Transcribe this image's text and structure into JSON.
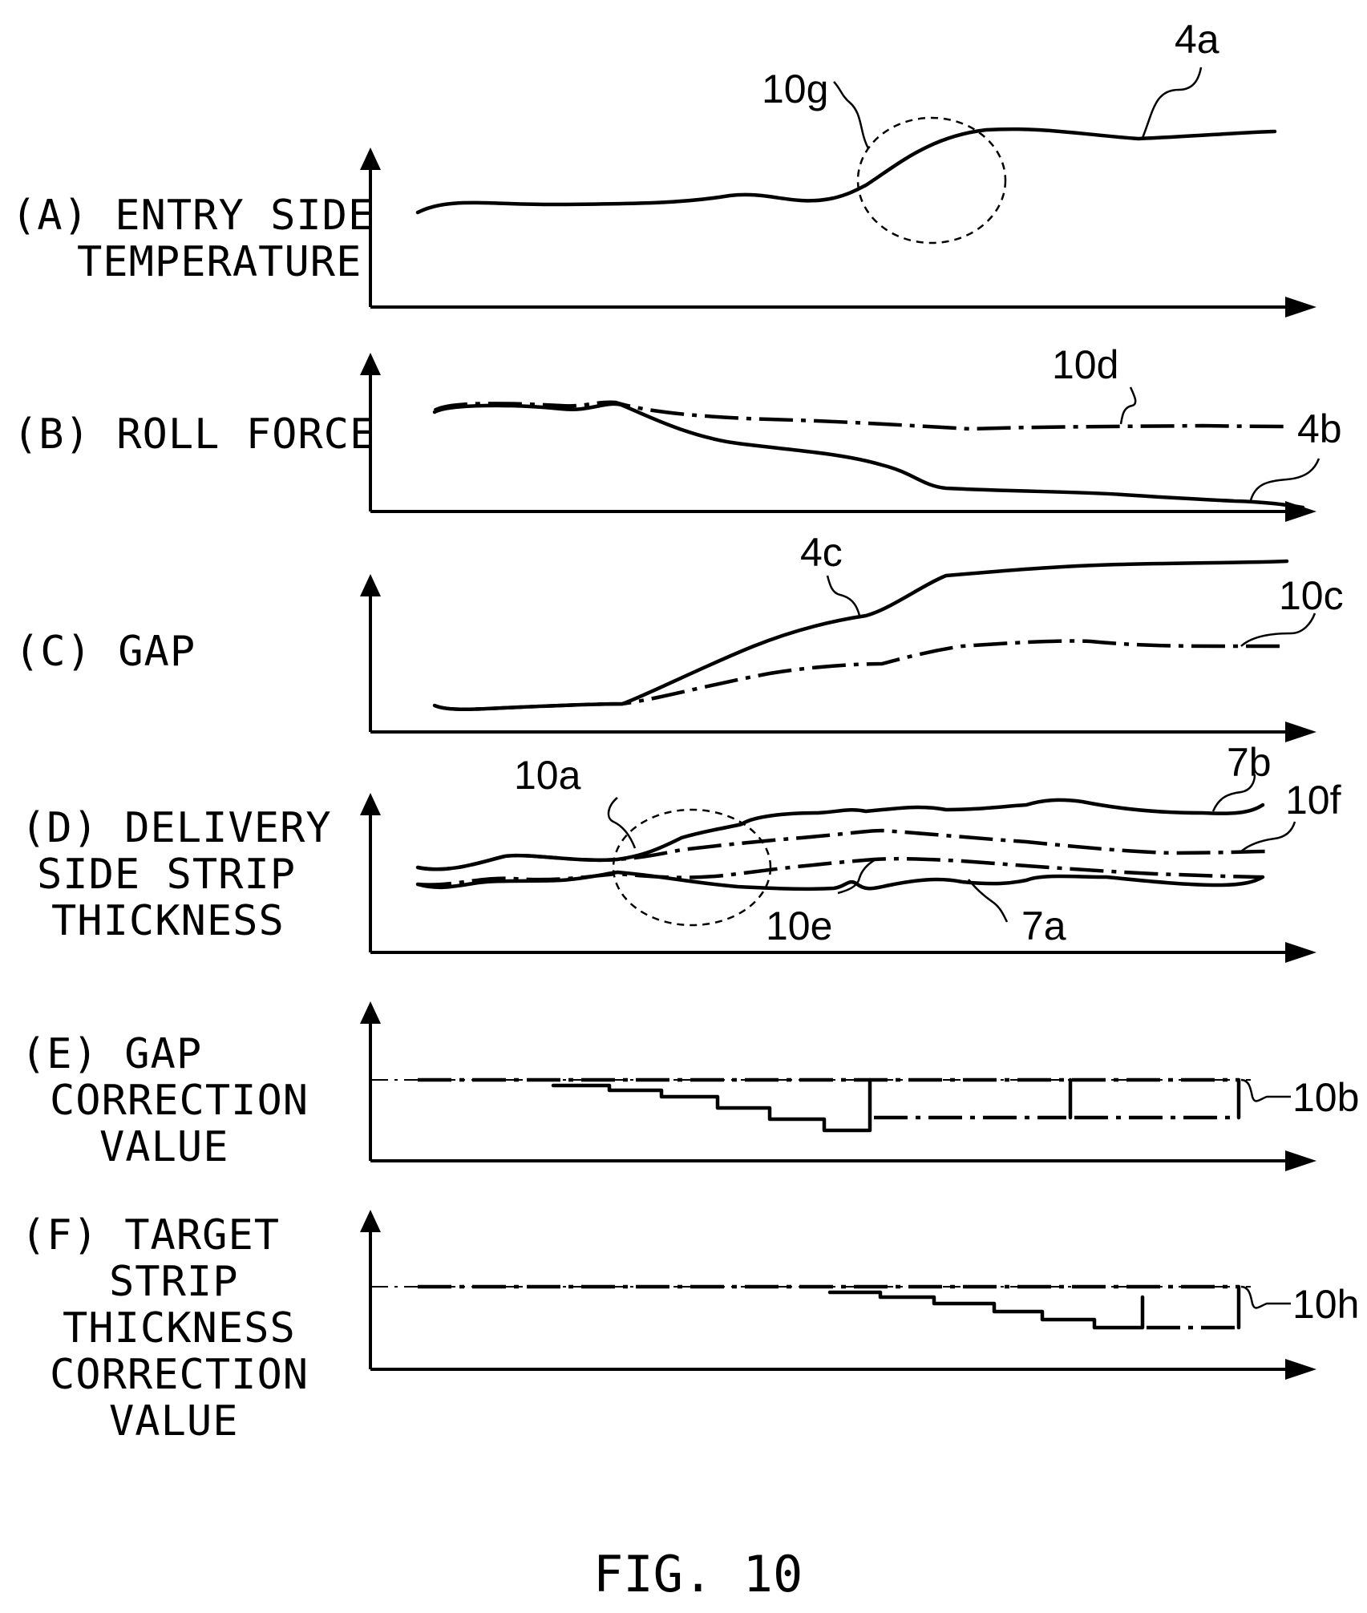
{
  "figure_caption": "FIG. 10",
  "panels": {
    "a": {
      "label_lines": [
        "(A) ENTRY SIDE",
        "TEMPERATURE"
      ]
    },
    "b": {
      "label_lines": [
        "(B) ROLL FORCE"
      ]
    },
    "c": {
      "label_lines": [
        "(C) GAP"
      ]
    },
    "d": {
      "label_lines": [
        "(D) DELIVERY",
        "SIDE STRIP",
        "THICKNESS"
      ]
    },
    "e": {
      "label_lines": [
        "(E) GAP",
        "CORRECTION",
        "VALUE"
      ]
    },
    "f": {
      "label_lines": [
        "(F) TARGET",
        "STRIP",
        "THICKNESS",
        "CORRECTION",
        "VALUE"
      ]
    }
  },
  "refs": {
    "r4a": "4a",
    "r10g": "10g",
    "r10d": "10d",
    "r4b": "4b",
    "r4c": "4c",
    "r10c": "10c",
    "r10a": "10a",
    "r7b": "7b",
    "r10f": "10f",
    "r10e": "10e",
    "r7a": "7a",
    "r10b": "10b",
    "r10h": "10h"
  }
}
